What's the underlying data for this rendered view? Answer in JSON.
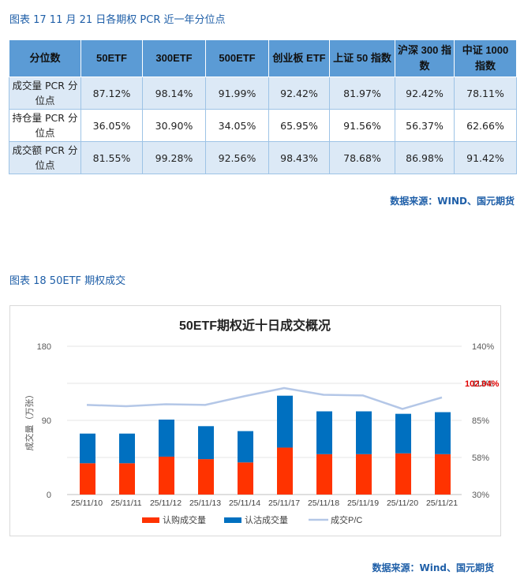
{
  "table_section": {
    "caption": "图表 17 11 月 21 日各期权 PCR 近一年分位点",
    "headers": [
      "分位数",
      "50ETF",
      "300ETF",
      "500ETF",
      "创业板 ETF",
      "上证 50 指数",
      "沪深 300 指数",
      "中证 1000 指数"
    ],
    "rows": [
      {
        "label": "成交量 PCR 分位点",
        "values": [
          "87.12%",
          "98.14%",
          "91.99%",
          "92.42%",
          "81.97%",
          "92.42%",
          "78.11%"
        ]
      },
      {
        "label": "持仓量 PCR 分位点",
        "values": [
          "36.05%",
          "30.90%",
          "34.05%",
          "65.95%",
          "91.56%",
          "56.37%",
          "62.66%"
        ]
      },
      {
        "label": "成交额 PCR 分位点",
        "values": [
          "81.55%",
          "99.28%",
          "92.56%",
          "98.43%",
          "78.68%",
          "86.98%",
          "91.42%"
        ]
      }
    ],
    "source": "数据来源：WIND、国元期货"
  },
  "chart_section": {
    "caption": "图表 18 50ETF 期权成交",
    "source": "数据来源：Wind、国元期货"
  },
  "chart_data": {
    "type": "bar",
    "title": "50ETF期权近十日成交概况",
    "categories": [
      "25/11/10",
      "25/11/11",
      "25/11/12",
      "25/11/13",
      "25/11/14",
      "25/11/17",
      "25/11/18",
      "25/11/19",
      "25/11/20",
      "25/11/21"
    ],
    "ylabel": "成交量（万张）",
    "ylim": [
      0,
      180
    ],
    "yticks": [
      "0",
      "90",
      "180"
    ],
    "y2lim": [
      30,
      140
    ],
    "y2ticks": [
      "30%",
      "58%",
      "85%",
      "113%",
      "140%"
    ],
    "series": [
      {
        "name": "认购成交量",
        "color": "#ff3300",
        "values": [
          38,
          38,
          46,
          43,
          39,
          57,
          49,
          49,
          50,
          49
        ]
      },
      {
        "name": "认沽成交量",
        "color": "#0070c0",
        "values": [
          36,
          36,
          45,
          40,
          38,
          63,
          52,
          52,
          48,
          51
        ]
      },
      {
        "name": "成交P/C",
        "color": "#b4c7e7",
        "axis": "secondary",
        "values": [
          96.5,
          95.5,
          97,
          96.5,
          103,
          109,
          104,
          103.5,
          93.5,
          102.04
        ]
      }
    ],
    "annotation": {
      "text": "102.04%",
      "color": "#e00000"
    },
    "annotation_overlap": "113%"
  }
}
